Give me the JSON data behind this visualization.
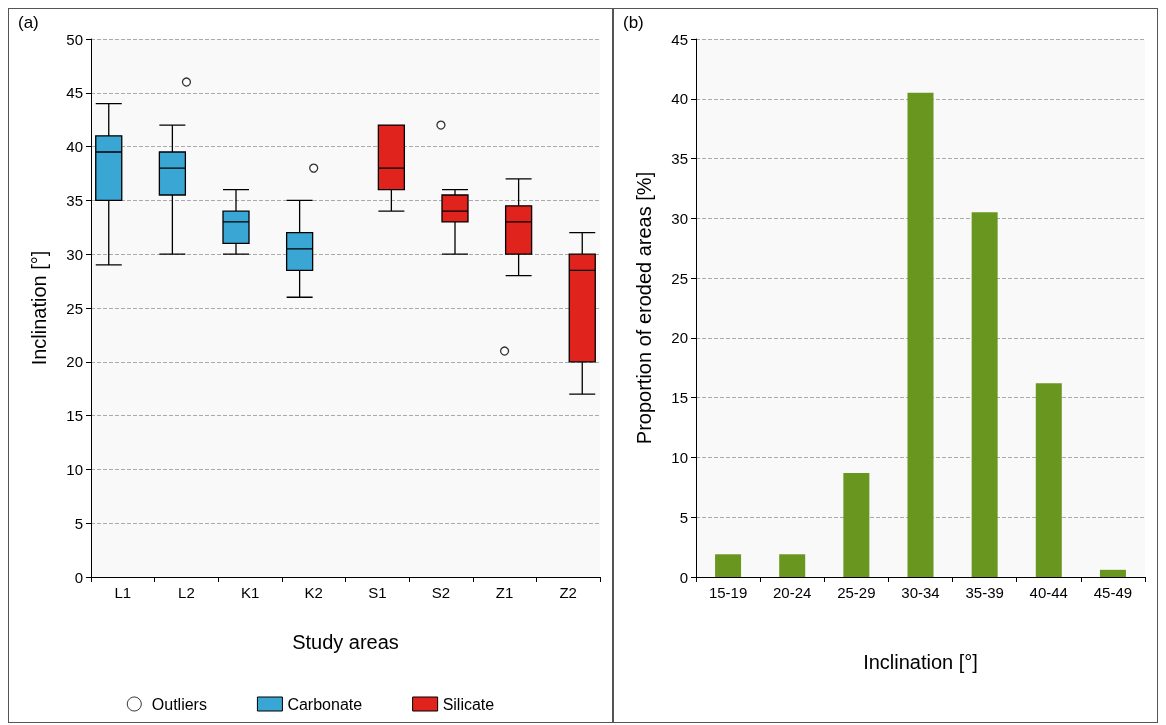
{
  "chart_data": [
    {
      "type": "box",
      "title": "(a)",
      "xlabel": "Study areas",
      "ylabel": "Inclination [°]",
      "categories": [
        "L1",
        "L2",
        "K1",
        "K2",
        "S1",
        "S2",
        "Z1",
        "Z2"
      ],
      "ylim": [
        0,
        50
      ],
      "yticks": [
        0,
        5,
        10,
        15,
        20,
        25,
        30,
        35,
        40,
        45,
        50
      ],
      "grid": "y",
      "legend": "bottom",
      "series": [
        {
          "type": "scatter",
          "name": "Outliers",
          "color": "#ffffff",
          "marker": "circle",
          "x": [
            "L2",
            "K2",
            "S2",
            "Z1"
          ],
          "values": [
            46,
            38,
            42,
            21
          ]
        },
        {
          "name": "Carbonate",
          "color": "#3aa6d4",
          "boxes": [
            {
              "low": 29,
              "q1": 35,
              "median": 39.5,
              "q3": 41,
              "high": 44
            },
            {
              "low": 30,
              "q1": 35.5,
              "median": 38,
              "q3": 39.5,
              "high": 42
            },
            {
              "low": 30,
              "q1": 31,
              "median": 33,
              "q3": 34,
              "high": 36
            },
            {
              "low": 26,
              "q1": 28.5,
              "median": 30.5,
              "q3": 32,
              "high": 35
            },
            null,
            null,
            null,
            null
          ]
        },
        {
          "name": "Silicate",
          "color": "#e0231c",
          "boxes": [
            null,
            null,
            null,
            null,
            {
              "low": 34,
              "q1": 36,
              "median": 38,
              "q3": 42,
              "high": 42
            },
            {
              "low": 30,
              "q1": 33,
              "median": 34,
              "q3": 35.5,
              "high": 36
            },
            {
              "low": 28,
              "q1": 30,
              "median": 33,
              "q3": 34.5,
              "high": 37
            },
            {
              "low": 17,
              "q1": 20,
              "median": 28.5,
              "q3": 30,
              "high": 32
            }
          ]
        }
      ]
    },
    {
      "type": "bar",
      "title": "(b)",
      "xlabel": "Inclination [°]",
      "ylabel": "Proportion of eroded areas [%]",
      "categories": [
        "15-19",
        "20-24",
        "25-29",
        "30-34",
        "35-39",
        "40-44",
        "45-49"
      ],
      "values": [
        1.9,
        1.9,
        8.7,
        40.5,
        30.5,
        16.2,
        0.6
      ],
      "color": "#68961e",
      "ylim": [
        0,
        45
      ],
      "yticks": [
        0,
        5,
        10,
        15,
        20,
        25,
        30,
        35,
        40,
        45
      ],
      "grid": "y",
      "legend": false
    }
  ]
}
